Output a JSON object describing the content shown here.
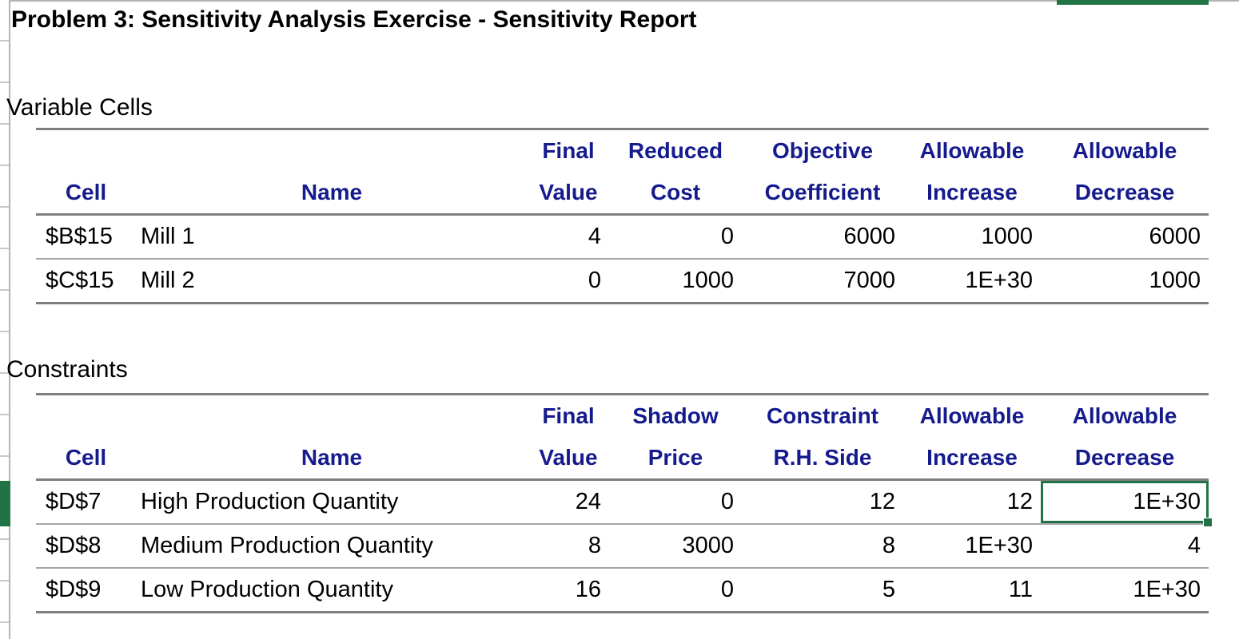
{
  "title": "Problem 3: Sensitivity Analysis Exercise - Sensitivity Report",
  "colors": {
    "header_text": "#151b8d",
    "selection_green": "#217346",
    "heavy_border": "#7f7f7f",
    "light_border": "#a6a6a6",
    "edge_border": "#b3b3b3"
  },
  "variable_cells": {
    "section_label": "Variable Cells",
    "headers": [
      {
        "top": "",
        "bottom": "Cell"
      },
      {
        "top": "",
        "bottom": "Name"
      },
      {
        "top": "Final",
        "bottom": "Value"
      },
      {
        "top": "Reduced",
        "bottom": "Cost"
      },
      {
        "top": "Objective",
        "bottom": "Coefficient"
      },
      {
        "top": "Allowable",
        "bottom": "Increase"
      },
      {
        "top": "Allowable",
        "bottom": "Decrease"
      }
    ],
    "rows": [
      {
        "cell": "$B$15",
        "name": "Mill 1",
        "final_value": "4",
        "reduced_cost": "0",
        "objective_coefficient": "6000",
        "allowable_increase": "1000",
        "allowable_decrease": "6000"
      },
      {
        "cell": "$C$15",
        "name": "Mill 2",
        "final_value": "0",
        "reduced_cost": "1000",
        "objective_coefficient": "7000",
        "allowable_increase": "1E+30",
        "allowable_decrease": "1000"
      }
    ]
  },
  "constraints": {
    "section_label": "Constraints",
    "headers": [
      {
        "top": "",
        "bottom": "Cell"
      },
      {
        "top": "",
        "bottom": "Name"
      },
      {
        "top": "Final",
        "bottom": "Value"
      },
      {
        "top": "Shadow",
        "bottom": "Price"
      },
      {
        "top": "Constraint",
        "bottom": "R.H. Side"
      },
      {
        "top": "Allowable",
        "bottom": "Increase"
      },
      {
        "top": "Allowable",
        "bottom": "Decrease"
      }
    ],
    "rows": [
      {
        "cell": "$D$7",
        "name": "High Production Quantity",
        "final_value": "24",
        "shadow_price": "0",
        "constraint_rh_side": "12",
        "allowable_increase": "12",
        "allowable_decrease": "1E+30"
      },
      {
        "cell": "$D$8",
        "name": "Medium Production Quantity",
        "final_value": "8",
        "shadow_price": "3000",
        "constraint_rh_side": "8",
        "allowable_increase": "1E+30",
        "allowable_decrease": "4"
      },
      {
        "cell": "$D$9",
        "name": "Low Production Quantity",
        "final_value": "16",
        "shadow_price": "0",
        "constraint_rh_side": "5",
        "allowable_increase": "11",
        "allowable_decrease": "1E+30"
      }
    ]
  },
  "selection": {
    "selected_cell_value": "1E+30",
    "selected_row_label": "$D$7",
    "selected_column_header": "Allowable Decrease"
  }
}
